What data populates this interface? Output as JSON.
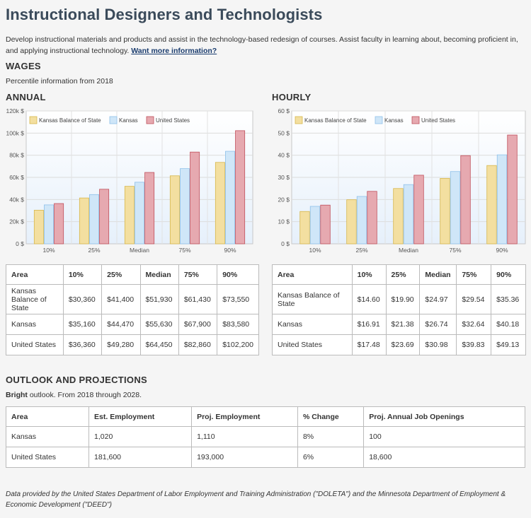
{
  "title": "Instructional Designers and Technologists",
  "description": "Develop instructional materials and products and assist in the technology-based redesign of courses. Assist faculty in learning about, becoming proficient in, and applying instructional technology.",
  "more_info_link": "Want more information?",
  "wages": {
    "heading": "WAGES",
    "percentile_note": "Percentile information from 2018",
    "annual_heading": "ANNUAL",
    "hourly_heading": "HOURLY"
  },
  "colors": {
    "balance": "#f3dfa0",
    "balance_stroke": "#d6b74c",
    "kansas": "#cfe6f8",
    "kansas_stroke": "#8fc1ea",
    "us": "#e6a9b0",
    "us_stroke": "#c0505c"
  },
  "chart_data": [
    {
      "type": "bar",
      "categories": [
        "10%",
        "25%",
        "Median",
        "75%",
        "90%"
      ],
      "y_ticks": [
        "0 $",
        "20k $",
        "40k $",
        "60k $",
        "80k $",
        "100k $",
        "120k $"
      ],
      "ylim": [
        0,
        120000
      ],
      "legend_position": "top-left",
      "series": [
        {
          "name": "Kansas Balance of State",
          "values": [
            30360,
            41400,
            51930,
            61430,
            73550
          ]
        },
        {
          "name": "Kansas",
          "values": [
            35160,
            44470,
            55630,
            67900,
            83580
          ]
        },
        {
          "name": "United States",
          "values": [
            36360,
            49280,
            64450,
            82860,
            102200
          ]
        }
      ]
    },
    {
      "type": "bar",
      "categories": [
        "10%",
        "25%",
        "Median",
        "75%",
        "90%"
      ],
      "y_ticks": [
        "0 $",
        "10 $",
        "20 $",
        "30 $",
        "40 $",
        "50 $",
        "60 $"
      ],
      "ylim": [
        0,
        60
      ],
      "legend_position": "top-left",
      "series": [
        {
          "name": "Kansas Balance of State",
          "values": [
            14.6,
            19.9,
            24.97,
            29.54,
            35.36
          ]
        },
        {
          "name": "Kansas",
          "values": [
            16.91,
            21.38,
            26.74,
            32.64,
            40.18
          ]
        },
        {
          "name": "United States",
          "values": [
            17.48,
            23.69,
            30.98,
            39.83,
            49.13
          ]
        }
      ]
    }
  ],
  "annual_table": {
    "headers": [
      "Area",
      "10%",
      "25%",
      "Median",
      "75%",
      "90%"
    ],
    "rows": [
      [
        "Kansas Balance of State",
        "$30,360",
        "$41,400",
        "$51,930",
        "$61,430",
        "$73,550"
      ],
      [
        "Kansas",
        "$35,160",
        "$44,470",
        "$55,630",
        "$67,900",
        "$83,580"
      ],
      [
        "United States",
        "$36,360",
        "$49,280",
        "$64,450",
        "$82,860",
        "$102,200"
      ]
    ]
  },
  "hourly_table": {
    "headers": [
      "Area",
      "10%",
      "25%",
      "Median",
      "75%",
      "90%"
    ],
    "rows": [
      [
        "Kansas Balance of State",
        "$14.60",
        "$19.90",
        "$24.97",
        "$29.54",
        "$35.36"
      ],
      [
        "Kansas",
        "$16.91",
        "$21.38",
        "$26.74",
        "$32.64",
        "$40.18"
      ],
      [
        "United States",
        "$17.48",
        "$23.69",
        "$30.98",
        "$39.83",
        "$49.13"
      ]
    ]
  },
  "outlook": {
    "heading": "OUTLOOK AND PROJECTIONS",
    "outlook_word": "Bright",
    "outlook_rest": " outlook. From 2018 through 2028.",
    "headers": [
      "Area",
      "Est. Employment",
      "Proj. Employment",
      "% Change",
      "Proj. Annual Job Openings"
    ],
    "rows": [
      [
        "Kansas",
        "1,020",
        "1,110",
        "8%",
        "100"
      ],
      [
        "United States",
        "181,600",
        "193,000",
        "6%",
        "18,600"
      ]
    ]
  },
  "footer": "Data provided by the United States Department of Labor Employment and Training Administration (\"DOLETA\") and the Minnesota Department of Employment & Economic Development (\"DEED\")"
}
